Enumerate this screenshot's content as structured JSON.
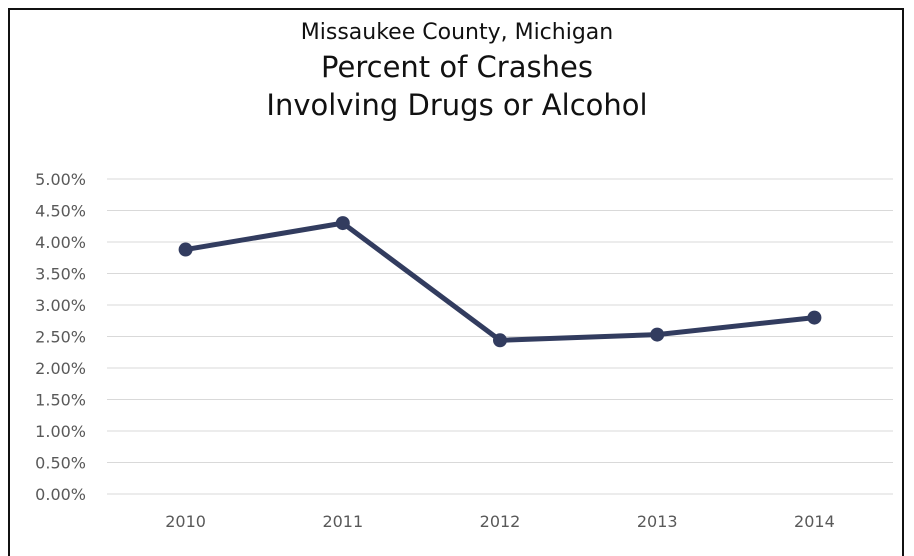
{
  "chart_data": {
    "type": "line",
    "title": "Missaukee County, Michigan",
    "subtitle_lines": [
      "Percent of Crashes",
      "Involving Drugs or Alcohol"
    ],
    "categories": [
      "2010",
      "2011",
      "2012",
      "2013",
      "2014"
    ],
    "series": [
      {
        "values": [
          3.88,
          4.3,
          2.44,
          2.53,
          2.8
        ]
      }
    ],
    "ylim": [
      0,
      5
    ],
    "y_ticks": [
      "0.00%",
      "0.50%",
      "1.00%",
      "1.50%",
      "2.00%",
      "2.50%",
      "3.00%",
      "3.50%",
      "4.00%",
      "4.50%",
      "5.00%"
    ],
    "grid": true,
    "legend": "none",
    "line_color": "#323C5F",
    "grid_color": "#D9D9D9"
  }
}
